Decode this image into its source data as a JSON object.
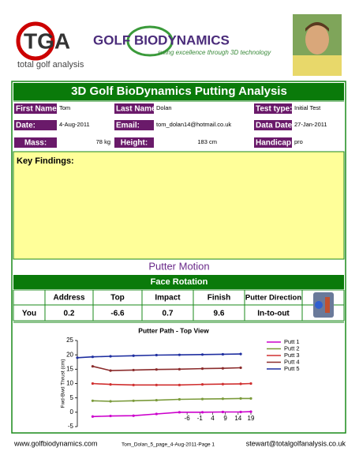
{
  "header": {
    "tga_logo": "TGA",
    "tga_tagline": "total golf analysis",
    "brand_logo": "GOLF BIODYNAMICS",
    "brand_tagline": "swing excellence through 3D technology"
  },
  "title": "3D Golf BioDynamics Putting Analysis",
  "info": [
    {
      "label": "First Name:",
      "value": "Tom"
    },
    {
      "label": "Last Name:",
      "value": "Dolan"
    },
    {
      "label": "Test type:",
      "value": "Initial Test"
    },
    {
      "label": "Date:",
      "value": "4-Aug-2011"
    },
    {
      "label": "Email:",
      "value": "tom_dolan14@hotmail.co.uk"
    },
    {
      "label": "Data Date:",
      "value": "27-Jan-2011"
    },
    {
      "label": "Mass:",
      "value": "78 kg"
    },
    {
      "label": "Height:",
      "value": "183 cm"
    },
    {
      "label": "Handicap:",
      "value": "pro"
    }
  ],
  "key_findings": "Key Findings:",
  "section_title": "Putter Motion",
  "face_rotation": {
    "title": "Face Rotation",
    "columns": [
      "Address",
      "Top",
      "Impact",
      "Finish",
      "Putter Direction"
    ],
    "rows": [
      [
        "You",
        0.2,
        -6.6,
        0.7,
        9.6,
        "In-to-out"
      ]
    ]
  },
  "chart_data": {
    "type": "line",
    "title": "Putter Path - Top View",
    "y_label": "Fwd-Bwd Thrust (cm)",
    "x": [
      -49,
      -43,
      -36,
      -27,
      -18,
      -9,
      0,
      8,
      15,
      19
    ],
    "xlim": [
      -49,
      19
    ],
    "xticks": [
      -6,
      -1,
      4,
      9,
      14,
      19
    ],
    "ylim": [
      -5,
      25
    ],
    "yticks": [
      -5,
      0,
      5,
      10,
      15,
      20,
      25
    ],
    "series": [
      {
        "name": "Putt 1",
        "color": "#cc00cc",
        "values": [
          null,
          -1.5,
          -1.3,
          -1.2,
          -0.6,
          0,
          0,
          0.1,
          0.1,
          0.2
        ]
      },
      {
        "name": "Putt 2",
        "color": "#7a9a3a",
        "values": [
          null,
          4,
          3.8,
          4,
          4.2,
          4.5,
          4.6,
          4.7,
          4.8,
          4.8
        ]
      },
      {
        "name": "Putt 3",
        "color": "#d03030",
        "values": [
          null,
          10,
          9.7,
          9.5,
          9.5,
          9.5,
          9.7,
          9.8,
          9.9,
          10
        ]
      },
      {
        "name": "Putt 4",
        "color": "#8b2c2c",
        "values": [
          null,
          16,
          14.5,
          14.7,
          14.9,
          15,
          15.2,
          15.3,
          15.5,
          null
        ]
      },
      {
        "name": "Putt 5",
        "color": "#1f2fa0",
        "values": [
          19,
          19.3,
          19.5,
          19.7,
          19.9,
          20,
          20.1,
          20.2,
          20.3,
          null
        ]
      }
    ]
  },
  "footer": {
    "left": "www.golfbiodynamics.com",
    "center": "Tom_Dolan_5_page_4-Aug-2011-Page 1",
    "right": "stewart@totalgolfanalysis.co.uk"
  }
}
